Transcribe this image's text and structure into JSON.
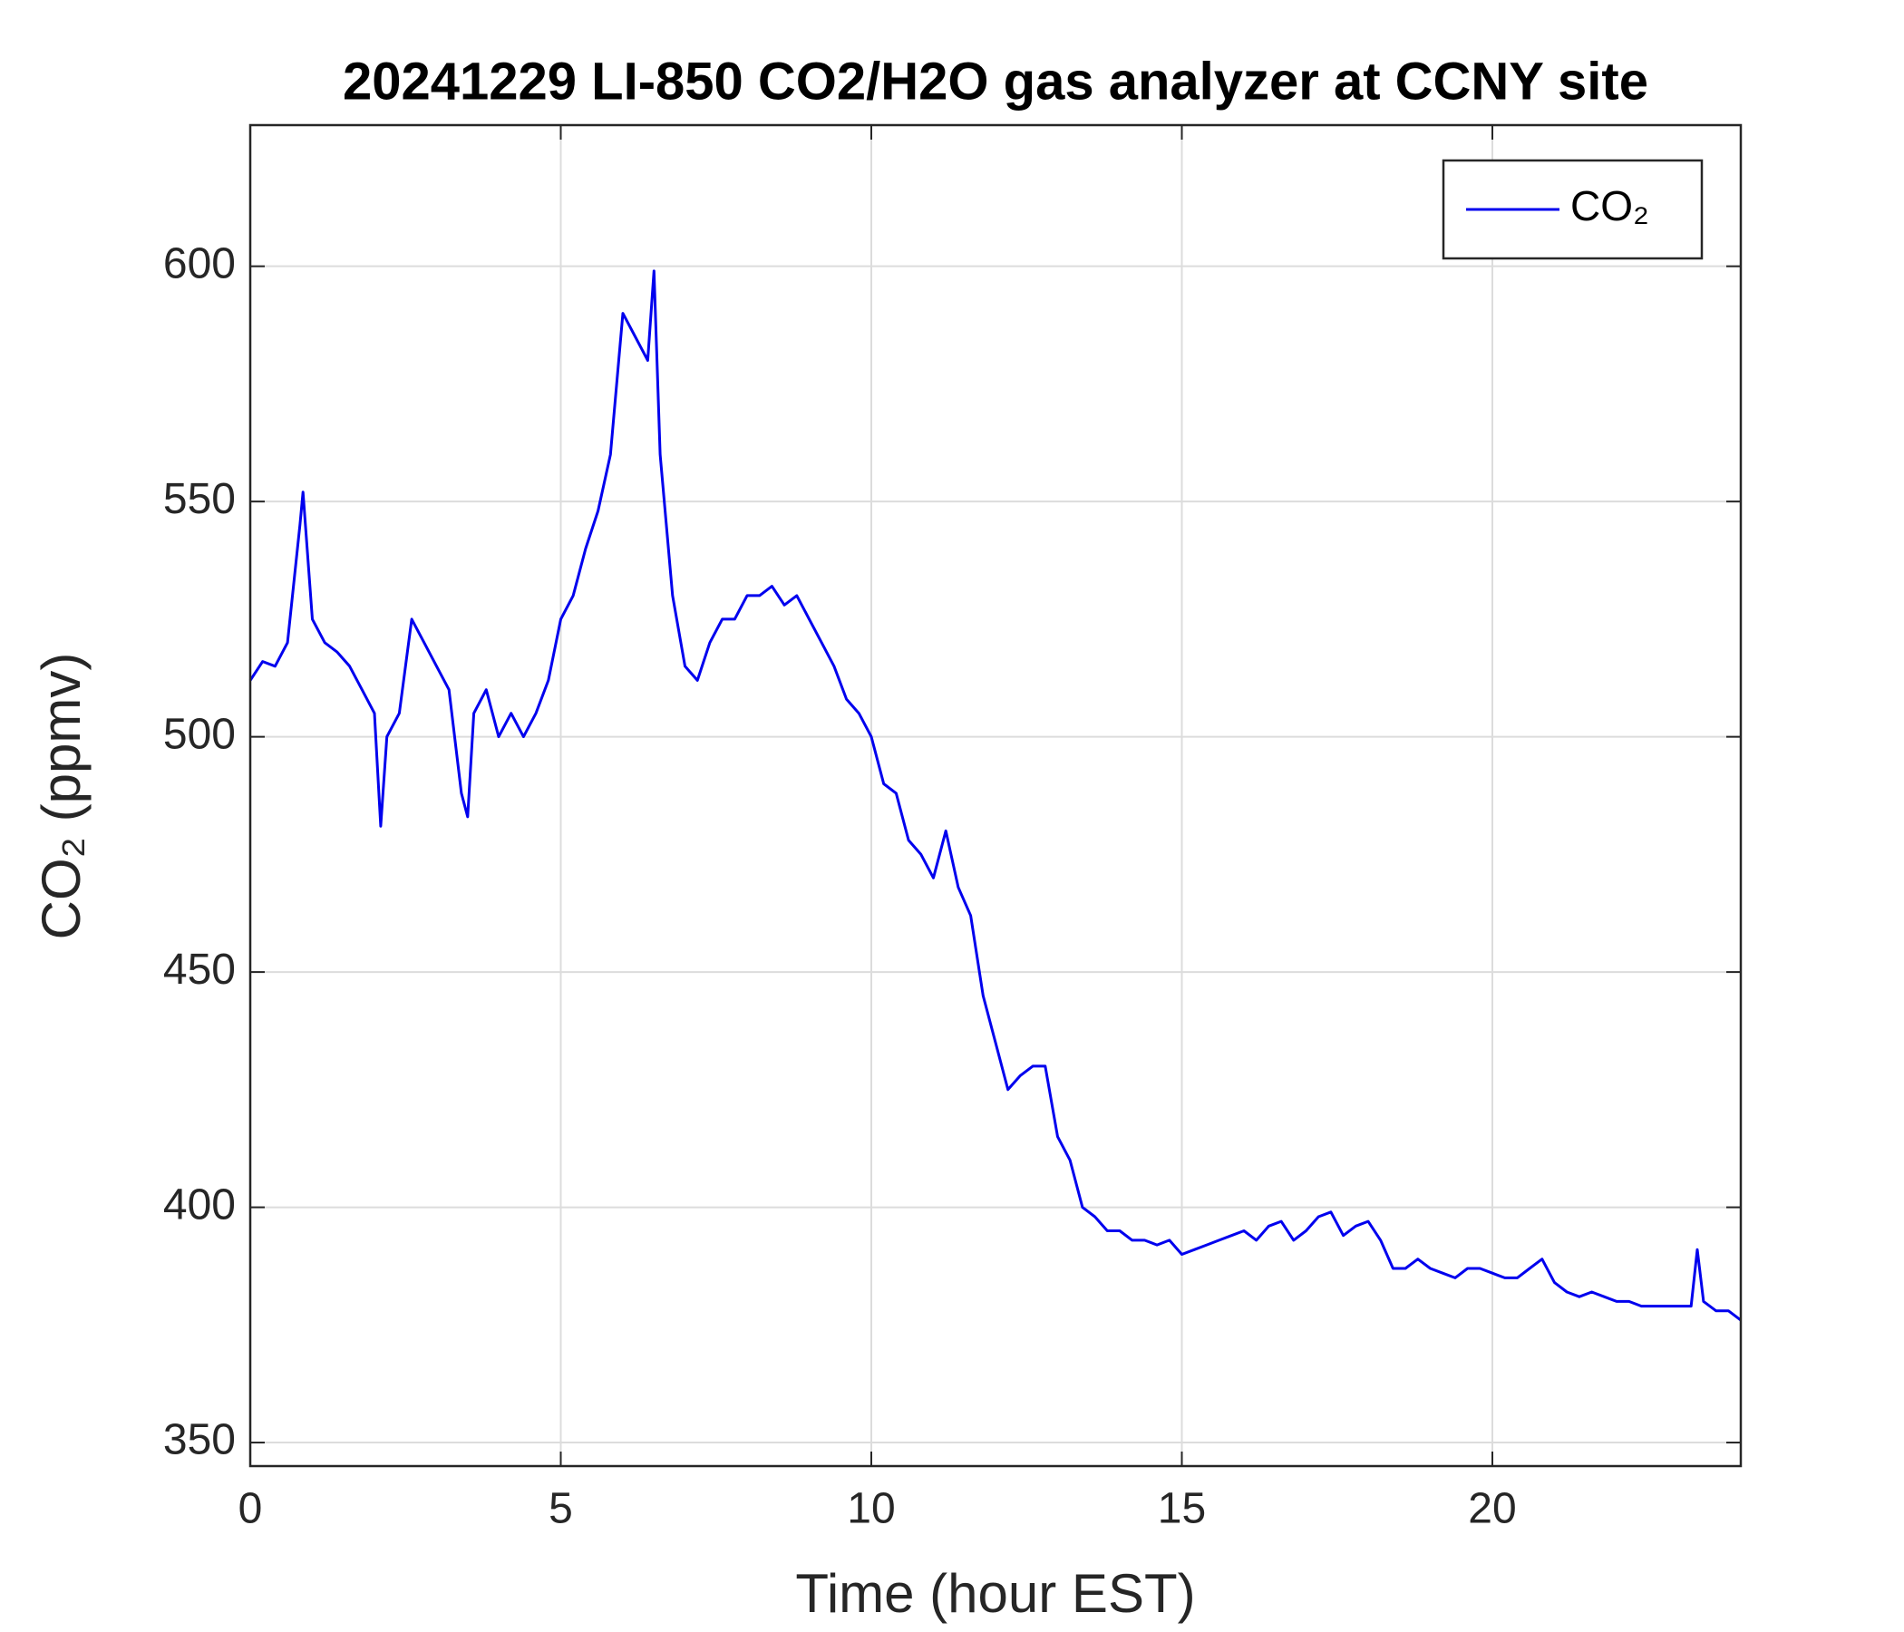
{
  "chart_data": {
    "type": "line",
    "title": "20241229 LI-850 CO2/H2O gas analyzer at CCNY site",
    "xlabel": "Time (hour EST)",
    "ylabel": "CO₂ (ppmv)",
    "x": [
      0,
      0.2,
      0.4,
      0.6,
      0.8,
      0.85,
      1.0,
      1.2,
      1.4,
      1.6,
      1.8,
      2.0,
      2.1,
      2.2,
      2.4,
      2.6,
      2.8,
      3.0,
      3.2,
      3.4,
      3.5,
      3.6,
      3.8,
      4.0,
      4.2,
      4.4,
      4.6,
      4.8,
      5.0,
      5.2,
      5.4,
      5.6,
      5.8,
      6.0,
      6.2,
      6.4,
      6.5,
      6.6,
      6.8,
      7.0,
      7.2,
      7.4,
      7.6,
      7.8,
      8.0,
      8.2,
      8.4,
      8.6,
      8.8,
      9.0,
      9.2,
      9.4,
      9.6,
      9.8,
      10.0,
      10.2,
      10.4,
      10.6,
      10.8,
      11.0,
      11.2,
      11.4,
      11.6,
      11.8,
      12.0,
      12.2,
      12.4,
      12.6,
      12.8,
      13.0,
      13.2,
      13.4,
      13.6,
      13.8,
      14.0,
      14.2,
      14.4,
      14.6,
      14.8,
      15.0,
      15.2,
      15.4,
      15.6,
      15.8,
      16.0,
      16.2,
      16.4,
      16.6,
      16.8,
      17.0,
      17.2,
      17.4,
      17.6,
      17.8,
      18.0,
      18.2,
      18.4,
      18.6,
      18.8,
      19.0,
      19.2,
      19.4,
      19.6,
      19.8,
      20.0,
      20.2,
      20.4,
      20.6,
      20.8,
      21.0,
      21.2,
      21.4,
      21.6,
      21.8,
      22.0,
      22.2,
      22.4,
      22.6,
      22.8,
      23.0,
      23.2,
      23.3,
      23.4,
      23.6,
      23.8,
      24.0
    ],
    "series": [
      {
        "name": "CO₂",
        "color": "#0000ee",
        "values": [
          512,
          516,
          515,
          520,
          545,
          552,
          525,
          520,
          518,
          515,
          510,
          505,
          481,
          500,
          505,
          525,
          520,
          515,
          510,
          488,
          483,
          505,
          510,
          500,
          505,
          500,
          505,
          512,
          525,
          530,
          540,
          548,
          560,
          590,
          585,
          580,
          599,
          560,
          530,
          515,
          512,
          520,
          525,
          525,
          530,
          530,
          532,
          528,
          530,
          525,
          520,
          515,
          508,
          505,
          500,
          490,
          488,
          478,
          475,
          470,
          480,
          468,
          462,
          445,
          435,
          425,
          428,
          430,
          430,
          415,
          410,
          400,
          398,
          395,
          395,
          393,
          393,
          392,
          393,
          390,
          391,
          392,
          393,
          394,
          395,
          393,
          396,
          397,
          393,
          395,
          398,
          399,
          394,
          396,
          397,
          393,
          387,
          387,
          389,
          387,
          386,
          385,
          387,
          387,
          386,
          385,
          385,
          387,
          389,
          384,
          382,
          381,
          382,
          381,
          380,
          380,
          379,
          379,
          379,
          379,
          379,
          391,
          380,
          378,
          378,
          376
        ]
      }
    ],
    "xlim": [
      0,
      24
    ],
    "ylim": [
      345,
      630
    ],
    "xticks": [
      0,
      5,
      10,
      15,
      20
    ],
    "yticks": [
      350,
      400,
      450,
      500,
      550,
      600
    ],
    "grid": true,
    "legend": "upper right"
  }
}
